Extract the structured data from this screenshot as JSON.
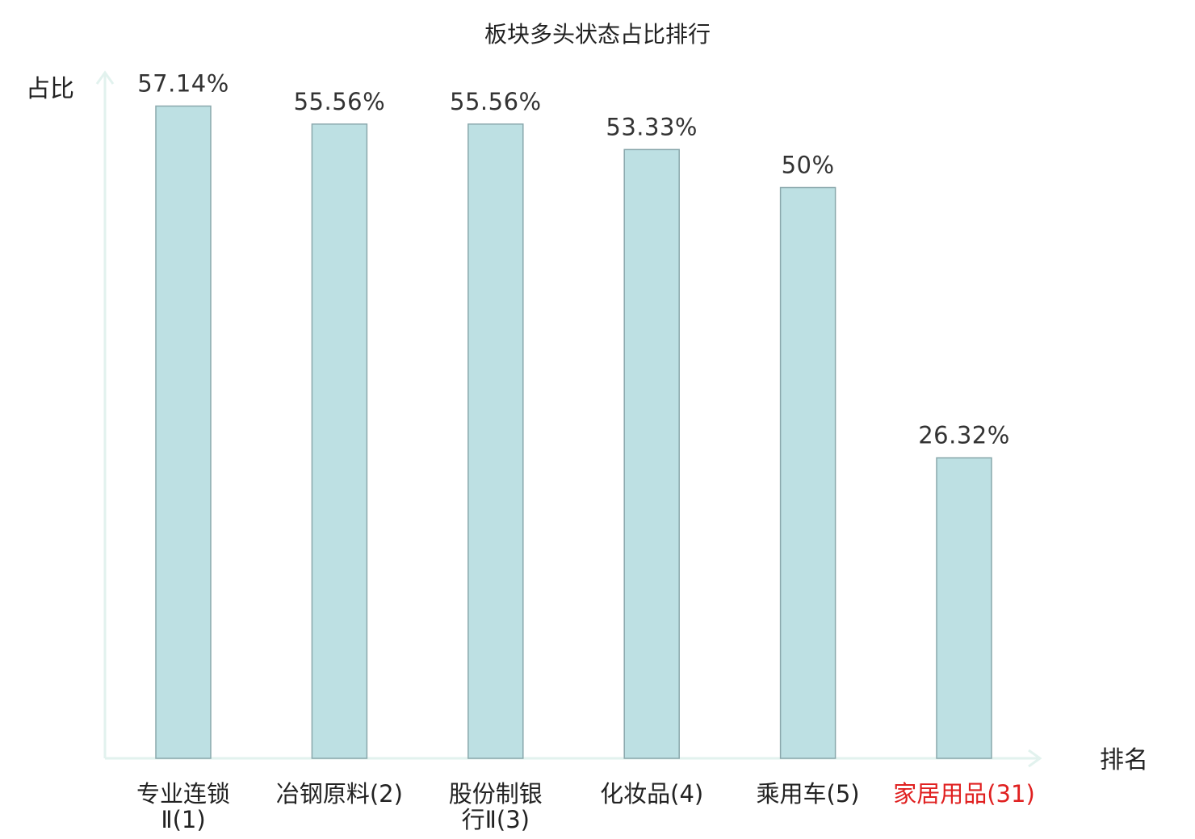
{
  "chart_data": {
    "type": "bar",
    "title": "板块多头状态占比排行",
    "ylabel": "占比",
    "xlabel": "排名",
    "ylim": [
      0,
      60
    ],
    "unit": "%",
    "grid": false,
    "categories": [
      {
        "lines": [
          "专业连锁",
          "Ⅱ(1)"
        ],
        "highlight": false
      },
      {
        "lines": [
          "冶钢原料(2)"
        ],
        "highlight": false
      },
      {
        "lines": [
          "股份制银",
          "行Ⅱ(3)"
        ],
        "highlight": false
      },
      {
        "lines": [
          "化妆品(4)"
        ],
        "highlight": false
      },
      {
        "lines": [
          "乘用车(5)"
        ],
        "highlight": false
      },
      {
        "lines": [
          "家居用品(31)"
        ],
        "highlight": true
      }
    ],
    "values": [
      57.14,
      55.56,
      55.56,
      53.33,
      50,
      26.32
    ],
    "value_labels": [
      "57.14%",
      "55.56%",
      "55.56%",
      "53.33%",
      "50%",
      "26.32%"
    ]
  },
  "colors": {
    "bar_fill": "#bde0e3",
    "bar_stroke": "#8aa8ac",
    "axis": "#e2f2ee",
    "highlight": "#e02020"
  }
}
